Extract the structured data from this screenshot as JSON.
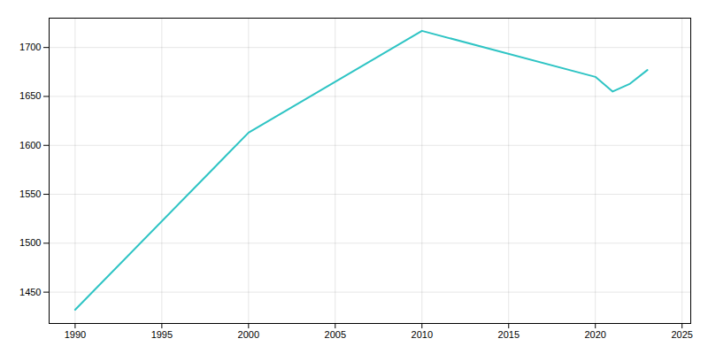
{
  "chart_data": {
    "type": "line",
    "x": [
      1990,
      2000,
      2010,
      2020,
      2021,
      2022,
      2023
    ],
    "values": [
      1432,
      1613,
      1717,
      1670,
      1655,
      1663,
      1677
    ],
    "color": "#2EC4C4",
    "xlim": [
      1988.5,
      2025.5
    ],
    "ylim": [
      1418,
      1730
    ],
    "xticks": [
      1990,
      1995,
      2000,
      2005,
      2010,
      2015,
      2020,
      2025
    ],
    "yticks": [
      1450,
      1500,
      1550,
      1600,
      1650,
      1700
    ],
    "grid": true
  }
}
